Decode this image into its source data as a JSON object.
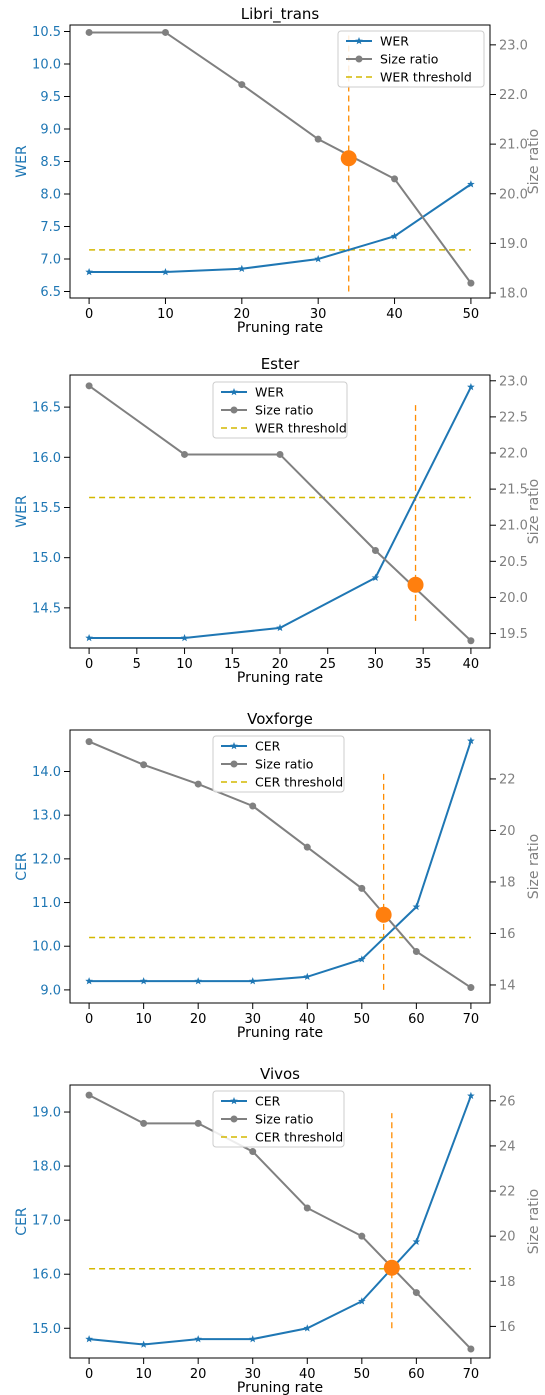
{
  "colors": {
    "wer": "#1f77b4",
    "size_ratio": "#808080",
    "threshold": "#d4b800",
    "vline": "#ff8c00",
    "marker": "#ff7f0e",
    "axis": "#000000"
  },
  "chart_data": [
    {
      "type": "line",
      "title": "Libri_trans",
      "xlabel": "Pruning rate",
      "ylabel": "WER",
      "y2label": "Size ratio",
      "x": [
        0,
        10,
        20,
        30,
        40,
        50
      ],
      "xticks": [
        "0",
        "10",
        "20",
        "30",
        "40",
        "50"
      ],
      "xlim": [
        -2.5,
        52.5
      ],
      "ylim": [
        6.4,
        10.6
      ],
      "yticks": [
        "6.5",
        "7.0",
        "7.5",
        "8.0",
        "8.5",
        "9.0",
        "9.5",
        "10.0",
        "10.5"
      ],
      "y2lim": [
        17.9,
        23.4
      ],
      "y2ticks": [
        "18.0",
        "19.0",
        "20.0",
        "21.0",
        "22.0",
        "23.0"
      ],
      "legend": [
        "WER",
        "Size ratio",
        "WER threshold"
      ],
      "legend_position": "top-right",
      "series": [
        {
          "name": "WER",
          "axis": "left",
          "marker": "star",
          "values": [
            6.8,
            6.8,
            6.85,
            7.0,
            7.35,
            8.15
          ]
        },
        {
          "name": "Size ratio",
          "axis": "right",
          "marker": "circle",
          "values": [
            23.25,
            23.25,
            22.2,
            21.1,
            20.3,
            18.2
          ]
        }
      ],
      "threshold": {
        "name": "WER threshold",
        "value": 7.14
      },
      "vline": {
        "x": 34,
        "y_from": 6.5,
        "y_to": 10.45
      },
      "intersection": {
        "x": 34,
        "y": 8.55
      }
    },
    {
      "type": "line",
      "title": "Ester",
      "xlabel": "Pruning rate",
      "ylabel": "WER",
      "y2label": "Size ratio",
      "x": [
        0,
        10,
        20,
        30,
        40
      ],
      "xticks": [
        "0",
        "5",
        "10",
        "15",
        "20",
        "25",
        "30",
        "35",
        "40"
      ],
      "xlim": [
        -2,
        42
      ],
      "ylim": [
        14.1,
        16.82
      ],
      "yticks": [
        "14.5",
        "15.0",
        "15.5",
        "16.0",
        "16.5"
      ],
      "y2lim": [
        19.3,
        23.08
      ],
      "y2ticks": [
        "19.5",
        "20.0",
        "20.5",
        "21.0",
        "21.5",
        "22.0",
        "22.5",
        "23.0"
      ],
      "legend": [
        "WER",
        "Size ratio",
        "WER threshold"
      ],
      "legend_position": "top-center",
      "series": [
        {
          "name": "WER",
          "axis": "left",
          "marker": "star",
          "values": [
            14.2,
            14.2,
            14.3,
            14.8,
            16.7
          ]
        },
        {
          "name": "Size ratio",
          "axis": "right",
          "marker": "circle",
          "values": [
            22.93,
            21.98,
            21.98,
            20.65,
            19.4
          ]
        }
      ],
      "threshold": {
        "name": "WER threshold",
        "value": 15.6
      },
      "vline": {
        "x": 34.2,
        "y_from": 14.37,
        "y_to": 16.52
      },
      "intersection": {
        "x": 34.2,
        "y": 14.73
      }
    },
    {
      "type": "line",
      "title": "Voxforge",
      "xlabel": "Pruning rate",
      "ylabel": "CER",
      "y2label": "Size ratio",
      "x": [
        0,
        10,
        20,
        30,
        40,
        50,
        60,
        70
      ],
      "xticks": [
        "0",
        "10",
        "20",
        "30",
        "40",
        "50",
        "60",
        "70"
      ],
      "xlim": [
        -3.5,
        73.5
      ],
      "ylim": [
        8.7,
        14.95
      ],
      "yticks": [
        "9.0",
        "10.0",
        "11.0",
        "12.0",
        "13.0",
        "14.0"
      ],
      "y2lim": [
        13.3,
        23.9
      ],
      "y2ticks": [
        "14",
        "16",
        "18",
        "20",
        "22"
      ],
      "legend": [
        "CER",
        "Size ratio",
        "CER threshold"
      ],
      "legend_position": "top-center",
      "series": [
        {
          "name": "CER",
          "axis": "left",
          "marker": "star",
          "values": [
            9.2,
            9.2,
            9.2,
            9.2,
            9.3,
            9.7,
            10.9,
            14.7
          ]
        },
        {
          "name": "Size ratio",
          "axis": "right",
          "marker": "circle",
          "values": [
            23.45,
            22.55,
            21.8,
            20.95,
            19.35,
            17.75,
            15.3,
            13.9
          ]
        }
      ],
      "threshold": {
        "name": "CER threshold",
        "value": 10.2
      },
      "vline": {
        "x": 54,
        "y_from": 9.0,
        "y_to": 14.0
      },
      "intersection": {
        "x": 54,
        "y": 10.72
      }
    },
    {
      "type": "line",
      "title": "Vivos",
      "xlabel": "Pruning rate",
      "ylabel": "CER",
      "y2label": "Size ratio",
      "x": [
        0,
        10,
        20,
        30,
        40,
        50,
        60,
        70
      ],
      "xticks": [
        "0",
        "10",
        "20",
        "30",
        "40",
        "50",
        "60",
        "70"
      ],
      "xlim": [
        -3.5,
        73.5
      ],
      "ylim": [
        14.45,
        19.5
      ],
      "yticks": [
        "15.0",
        "16.0",
        "17.0",
        "18.0",
        "19.0"
      ],
      "y2lim": [
        14.6,
        26.7
      ],
      "y2ticks": [
        "16",
        "18",
        "20",
        "22",
        "24",
        "26"
      ],
      "legend": [
        "CER",
        "Size ratio",
        "CER threshold"
      ],
      "legend_position": "top-center",
      "series": [
        {
          "name": "CER",
          "axis": "left",
          "marker": "star",
          "values": [
            14.8,
            14.7,
            14.8,
            14.8,
            15.0,
            15.5,
            16.6,
            19.3
          ]
        },
        {
          "name": "Size ratio",
          "axis": "right",
          "marker": "circle",
          "values": [
            26.25,
            25.0,
            25.0,
            23.75,
            21.25,
            20.0,
            17.5,
            15.0
          ]
        }
      ],
      "threshold": {
        "name": "CER threshold",
        "value": 16.1
      },
      "vline": {
        "x": 55.5,
        "y_from": 15.0,
        "y_to": 18.98
      },
      "intersection": {
        "x": 55.5,
        "y": 16.12
      }
    }
  ]
}
